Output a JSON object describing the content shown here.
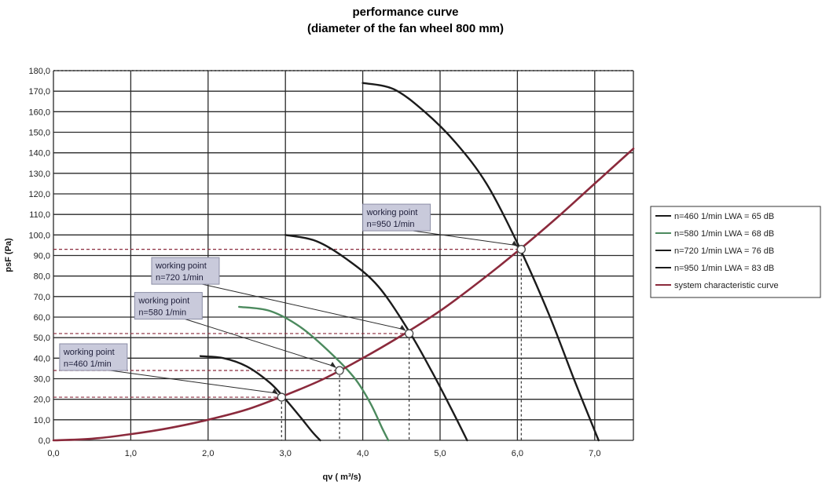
{
  "chart_data": {
    "type": "line",
    "title": "performance curve",
    "subtitle": "(diameter of the fan wheel 800 mm)",
    "xlabel": "qv ( m³/s)",
    "ylabel": "psF (Pa)",
    "xlim": [
      0,
      7.5
    ],
    "ylim": [
      0,
      180
    ],
    "x_ticks": [
      "0,0",
      "1,0",
      "2,0",
      "3,0",
      "4,0",
      "5,0",
      "6,0",
      "7,0"
    ],
    "y_ticks": [
      "0,0",
      "10,0",
      "20,0",
      "30,0",
      "40,0",
      "50,0",
      "60,0",
      "70,0",
      "80,0",
      "90,0",
      "100,0",
      "110,0",
      "120,0",
      "130,0",
      "140,0",
      "150,0",
      "160,0",
      "170,0",
      "180,0"
    ],
    "grid": true,
    "legend_position": "right",
    "series": [
      {
        "name": "n=460 1/min LWA = 65 dB",
        "color": "#1b1b1b",
        "points": [
          [
            1.9,
            41
          ],
          [
            2.2,
            40
          ],
          [
            2.5,
            36
          ],
          [
            2.8,
            28
          ],
          [
            3.0,
            20
          ],
          [
            3.2,
            11
          ],
          [
            3.35,
            4
          ],
          [
            3.45,
            0
          ]
        ]
      },
      {
        "name": "n=580 1/min LWA = 68 dB",
        "color": "#4c8a5e",
        "points": [
          [
            2.4,
            65
          ],
          [
            2.8,
            63
          ],
          [
            3.2,
            55
          ],
          [
            3.6,
            42
          ],
          [
            3.9,
            30
          ],
          [
            4.1,
            18
          ],
          [
            4.25,
            6
          ],
          [
            4.33,
            0
          ]
        ]
      },
      {
        "name": "n=720 1/min LWA = 76 dB",
        "color": "#1b1b1b",
        "points": [
          [
            3.0,
            100
          ],
          [
            3.4,
            97
          ],
          [
            3.8,
            88
          ],
          [
            4.2,
            75
          ],
          [
            4.6,
            53
          ],
          [
            4.9,
            33
          ],
          [
            5.15,
            15
          ],
          [
            5.35,
            0
          ]
        ]
      },
      {
        "name": "n=950 1/min LWA = 83 dB",
        "color": "#1b1b1b",
        "points": [
          [
            4.0,
            174
          ],
          [
            4.4,
            171
          ],
          [
            4.8,
            160
          ],
          [
            5.2,
            145
          ],
          [
            5.6,
            125
          ],
          [
            6.0,
            96
          ],
          [
            6.4,
            62
          ],
          [
            6.75,
            28
          ],
          [
            7.05,
            0
          ]
        ]
      },
      {
        "name": "system characteristic curve",
        "color": "#8b2a3c",
        "points": [
          [
            0,
            0
          ],
          [
            0.5,
            0.8
          ],
          [
            1.0,
            3.0
          ],
          [
            1.5,
            6.0
          ],
          [
            2.0,
            10
          ],
          [
            2.5,
            15
          ],
          [
            3.0,
            22
          ],
          [
            3.5,
            30
          ],
          [
            4.0,
            40
          ],
          [
            4.5,
            51
          ],
          [
            5.0,
            63
          ],
          [
            5.5,
            77
          ],
          [
            6.0,
            92
          ],
          [
            6.5,
            108
          ],
          [
            7.0,
            125
          ],
          [
            7.5,
            142
          ]
        ]
      }
    ],
    "working_points": [
      {
        "label_line1": "working point",
        "label_line2": "n=460 1/min",
        "x": 2.95,
        "y": 21,
        "label_x": 0.08,
        "label_y": 47
      },
      {
        "label_line1": "working point",
        "label_line2": "n=580 1/min",
        "x": 3.7,
        "y": 34,
        "label_x": 1.05,
        "label_y": 72
      },
      {
        "label_line1": "working point",
        "label_line2": "n=720 1/min",
        "x": 4.6,
        "y": 52,
        "label_x": 1.27,
        "label_y": 89
      },
      {
        "label_line1": "working point",
        "label_line2": "n=950 1/min",
        "x": 6.05,
        "y": 93,
        "label_x": 4.0,
        "label_y": 115
      }
    ]
  }
}
